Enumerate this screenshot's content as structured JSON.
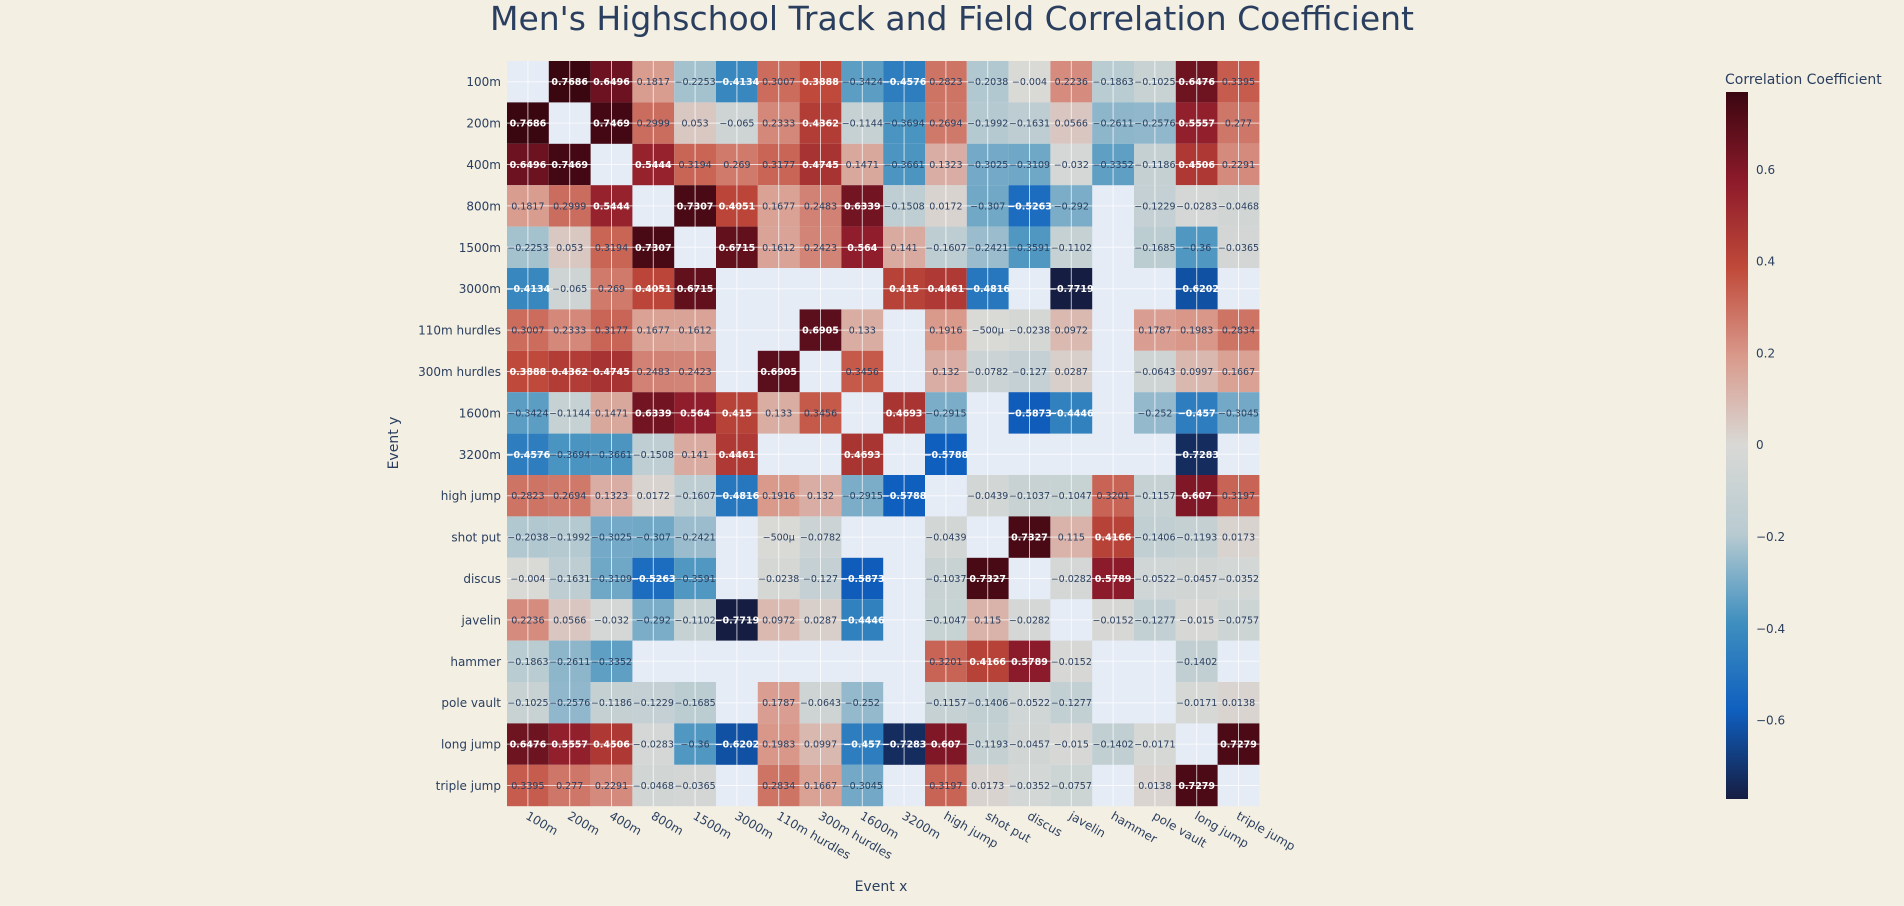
{
  "chart_data": {
    "type": "heatmap",
    "title": "Men's Highschool Track and Field Correlation Coefficient",
    "xlabel": "Event x",
    "ylabel": "Event y",
    "colorbar_title": "Correlation Coefficient",
    "colorbar_ticks": [
      "0.6",
      "0.4",
      "0.2",
      "0",
      "−0.2",
      "−0.4",
      "−0.6"
    ],
    "colorbar_tick_values": [
      0.6,
      0.4,
      0.2,
      0,
      -0.2,
      -0.4,
      -0.6
    ],
    "zmin": -0.7719,
    "zmax": 0.7686,
    "colorscale": [
      "#161d42",
      "#0f5fbf",
      "#3f8fbf",
      "#b8cbd1",
      "#d9d9d6",
      "#d99a8c",
      "#c04a3a",
      "#8c1a2a",
      "#3a0610"
    ],
    "x": [
      "100m",
      "200m",
      "400m",
      "800m",
      "1500m",
      "3000m",
      "110m hurdles",
      "300m hurdles",
      "1600m",
      "3200m",
      "high jump",
      "shot put",
      "discus",
      "javelin",
      "hammer",
      "pole vault",
      "long jump",
      "triple jump"
    ],
    "y": [
      "100m",
      "200m",
      "400m",
      "800m",
      "1500m",
      "3000m",
      "110m hurdles",
      "300m hurdles",
      "1600m",
      "3200m",
      "high jump",
      "shot put",
      "discus",
      "javelin",
      "hammer",
      "pole vault",
      "long jump",
      "triple jump"
    ],
    "z": [
      [
        null,
        0.7686,
        0.6496,
        0.1817,
        -0.2253,
        -0.4134,
        0.3007,
        0.3888,
        -0.3424,
        -0.4576,
        0.2823,
        -0.2038,
        -0.004,
        0.2236,
        -0.1863,
        -0.1025,
        0.6476,
        0.3395
      ],
      [
        0.7686,
        null,
        0.7469,
        0.2999,
        0.053,
        -0.065,
        0.2333,
        0.4362,
        -0.1144,
        -0.3694,
        0.2694,
        -0.1992,
        -0.1631,
        0.0566,
        -0.2611,
        -0.2576,
        0.5557,
        0.277
      ],
      [
        0.6496,
        0.7469,
        null,
        0.5444,
        0.3194,
        0.269,
        0.3177,
        0.4745,
        0.1471,
        -0.3661,
        0.1323,
        -0.3025,
        -0.3109,
        -0.032,
        -0.3352,
        -0.1186,
        0.4506,
        0.2291
      ],
      [
        0.1817,
        0.2999,
        0.5444,
        null,
        0.7307,
        0.4051,
        0.1677,
        0.2483,
        0.6339,
        -0.1508,
        0.0172,
        -0.307,
        -0.5263,
        -0.292,
        null,
        -0.1229,
        -0.0283,
        -0.0468
      ],
      [
        -0.2253,
        0.053,
        0.3194,
        0.7307,
        null,
        0.6715,
        0.1612,
        0.2423,
        0.564,
        0.141,
        -0.1607,
        -0.2421,
        -0.3591,
        -0.1102,
        null,
        -0.1685,
        -0.36,
        -0.0365
      ],
      [
        -0.4134,
        -0.065,
        0.269,
        0.4051,
        0.6715,
        null,
        null,
        null,
        null,
        0.415,
        0.4461,
        -0.4816,
        null,
        -0.7719,
        null,
        null,
        -0.6202,
        null
      ],
      [
        0.3007,
        0.2333,
        0.3177,
        0.1677,
        0.1612,
        null,
        null,
        0.6905,
        0.133,
        null,
        0.1916,
        -0.0005,
        -0.0238,
        0.0972,
        null,
        0.1787,
        0.1983,
        0.2834
      ],
      [
        0.3888,
        0.4362,
        0.4745,
        0.2483,
        0.2423,
        null,
        0.6905,
        null,
        0.3456,
        null,
        0.132,
        -0.0782,
        -0.127,
        0.0287,
        null,
        -0.0643,
        0.0997,
        0.1667
      ],
      [
        -0.3424,
        -0.1144,
        0.1471,
        0.6339,
        0.564,
        0.415,
        0.133,
        0.3456,
        null,
        0.4693,
        -0.2915,
        null,
        -0.5873,
        -0.4446,
        null,
        -0.252,
        -0.457,
        -0.3045
      ],
      [
        -0.4576,
        -0.3694,
        -0.3661,
        -0.1508,
        0.141,
        0.4461,
        null,
        null,
        0.4693,
        null,
        -0.5788,
        null,
        null,
        null,
        null,
        null,
        -0.7283,
        null
      ],
      [
        0.2823,
        0.2694,
        0.1323,
        0.0172,
        -0.1607,
        -0.4816,
        0.1916,
        0.132,
        -0.2915,
        -0.5788,
        null,
        -0.0439,
        -0.1037,
        -0.1047,
        0.3201,
        -0.1157,
        0.607,
        0.3197
      ],
      [
        -0.2038,
        -0.1992,
        -0.3025,
        -0.307,
        -0.2421,
        null,
        -0.0005,
        -0.0782,
        null,
        null,
        -0.0439,
        null,
        0.7327,
        0.115,
        0.4166,
        -0.1406,
        -0.1193,
        0.0173
      ],
      [
        -0.004,
        -0.1631,
        -0.3109,
        -0.5263,
        -0.3591,
        null,
        -0.0238,
        -0.127,
        -0.5873,
        null,
        -0.1037,
        0.7327,
        null,
        -0.0282,
        0.5789,
        -0.0522,
        -0.0457,
        -0.0352
      ],
      [
        0.2236,
        0.0566,
        -0.032,
        -0.292,
        -0.1102,
        -0.7719,
        0.0972,
        0.0287,
        -0.4446,
        null,
        -0.1047,
        0.115,
        -0.0282,
        null,
        -0.0152,
        -0.1277,
        -0.015,
        -0.0757
      ],
      [
        -0.1863,
        -0.2611,
        -0.3352,
        null,
        null,
        null,
        null,
        null,
        null,
        null,
        0.3201,
        0.4166,
        0.5789,
        -0.0152,
        null,
        null,
        -0.1402,
        null
      ],
      [
        -0.1025,
        -0.2576,
        -0.1186,
        -0.1229,
        -0.1685,
        null,
        0.1787,
        -0.0643,
        -0.252,
        null,
        -0.1157,
        -0.1406,
        -0.0522,
        -0.1277,
        null,
        null,
        -0.0171,
        0.0138
      ],
      [
        0.6476,
        0.5557,
        0.4506,
        -0.0283,
        -0.36,
        -0.6202,
        0.1983,
        0.0997,
        -0.457,
        -0.7283,
        0.607,
        -0.1193,
        -0.0457,
        -0.015,
        -0.1402,
        -0.0171,
        null,
        0.7279
      ],
      [
        0.3395,
        0.277,
        0.2291,
        -0.0468,
        -0.0365,
        null,
        0.2834,
        0.1667,
        -0.3045,
        null,
        0.3197,
        0.0173,
        -0.0352,
        -0.0757,
        null,
        0.0138,
        0.7279,
        null
      ]
    ],
    "text": [
      [
        "",
        "0.7686",
        "0.6496",
        "0.1817",
        "−0.2253",
        "−0.4134",
        "0.3007",
        "0.3888",
        "−0.3424",
        "−0.4576",
        "0.2823",
        "−0.2038",
        "−0.004",
        "0.2236",
        "−0.1863",
        "−0.1025",
        "0.6476",
        "0.3395"
      ],
      [
        "0.7686",
        "",
        "0.7469",
        "0.2999",
        "0.053",
        "−0.065",
        "0.2333",
        "0.4362",
        "−0.1144",
        "−0.3694",
        "0.2694",
        "−0.1992",
        "−0.1631",
        "0.0566",
        "−0.2611",
        "−0.2576",
        "0.5557",
        "0.277"
      ],
      [
        "0.6496",
        "0.7469",
        "",
        "0.5444",
        "0.3194",
        "0.269",
        "0.3177",
        "0.4745",
        "0.1471",
        "−0.3661",
        "0.1323",
        "−0.3025",
        "−0.3109",
        "−0.032",
        "−0.3352",
        "−0.1186",
        "0.4506",
        "0.2291"
      ],
      [
        "0.1817",
        "0.2999",
        "0.5444",
        "",
        "0.7307",
        "0.4051",
        "0.1677",
        "0.2483",
        "0.6339",
        "−0.1508",
        "0.0172",
        "−0.307",
        "−0.5263",
        "−0.292",
        "",
        "−0.1229",
        "−0.0283",
        "−0.0468"
      ],
      [
        "−0.2253",
        "0.053",
        "0.3194",
        "0.7307",
        "",
        "0.6715",
        "0.1612",
        "0.2423",
        "0.564",
        "0.141",
        "−0.1607",
        "−0.2421",
        "−0.3591",
        "−0.1102",
        "",
        "−0.1685",
        "−0.36",
        "−0.0365"
      ],
      [
        "−0.4134",
        "−0.065",
        "0.269",
        "0.4051",
        "0.6715",
        "",
        "",
        "",
        "",
        "0.415",
        "0.4461",
        "−0.4816",
        "",
        "−0.7719",
        "",
        "",
        "−0.6202",
        ""
      ],
      [
        "0.3007",
        "0.2333",
        "0.3177",
        "0.1677",
        "0.1612",
        "",
        "",
        "0.6905",
        "0.133",
        "",
        "0.1916",
        "−500μ",
        "−0.0238",
        "0.0972",
        "",
        "0.1787",
        "0.1983",
        "0.2834"
      ],
      [
        "0.3888",
        "0.4362",
        "0.4745",
        "0.2483",
        "0.2423",
        "",
        "0.6905",
        "",
        "0.3456",
        "",
        "0.132",
        "−0.0782",
        "−0.127",
        "0.0287",
        "",
        "−0.0643",
        "0.0997",
        "0.1667"
      ],
      [
        "−0.3424",
        "−0.1144",
        "0.1471",
        "0.6339",
        "0.564",
        "0.415",
        "0.133",
        "0.3456",
        "",
        "0.4693",
        "−0.2915",
        "",
        "−0.5873",
        "−0.4446",
        "",
        "−0.252",
        "−0.457",
        "−0.3045"
      ],
      [
        "−0.4576",
        "−0.3694",
        "−0.3661",
        "−0.1508",
        "0.141",
        "0.4461",
        "",
        "",
        "0.4693",
        "",
        "−0.5788",
        "",
        "",
        "",
        "",
        "",
        "−0.7283",
        ""
      ],
      [
        "0.2823",
        "0.2694",
        "0.1323",
        "0.0172",
        "−0.1607",
        "−0.4816",
        "0.1916",
        "0.132",
        "−0.2915",
        "−0.5788",
        "",
        "−0.0439",
        "−0.1037",
        "−0.1047",
        "0.3201",
        "−0.1157",
        "0.607",
        "0.3197"
      ],
      [
        "−0.2038",
        "−0.1992",
        "−0.3025",
        "−0.307",
        "−0.2421",
        "",
        "−500μ",
        "−0.0782",
        "",
        "",
        "−0.0439",
        "",
        "0.7327",
        "0.115",
        "0.4166",
        "−0.1406",
        "−0.1193",
        "0.0173"
      ],
      [
        "−0.004",
        "−0.1631",
        "−0.3109",
        "−0.5263",
        "−0.3591",
        "",
        "−0.0238",
        "−0.127",
        "−0.5873",
        "",
        "−0.1037",
        "0.7327",
        "",
        "−0.0282",
        "0.5789",
        "−0.0522",
        "−0.0457",
        "−0.0352"
      ],
      [
        "0.2236",
        "0.0566",
        "−0.032",
        "−0.292",
        "−0.1102",
        "−0.7719",
        "0.0972",
        "0.0287",
        "−0.4446",
        "",
        "−0.1047",
        "0.115",
        "−0.0282",
        "",
        "−0.0152",
        "−0.1277",
        "−0.015",
        "−0.0757"
      ],
      [
        "−0.1863",
        "−0.2611",
        "−0.3352",
        "",
        "",
        "",
        "",
        "",
        "",
        "",
        "0.3201",
        "0.4166",
        "0.5789",
        "−0.0152",
        "",
        "",
        "−0.1402",
        ""
      ],
      [
        "−0.1025",
        "−0.2576",
        "−0.1186",
        "−0.1229",
        "−0.1685",
        "",
        "0.1787",
        "−0.0643",
        "−0.252",
        "",
        "−0.1157",
        "−0.1406",
        "−0.0522",
        "−0.1277",
        "",
        "",
        "−0.0171",
        "0.0138"
      ],
      [
        "0.6476",
        "0.5557",
        "0.4506",
        "−0.0283",
        "−0.36",
        "−0.6202",
        "0.1983",
        "0.0997",
        "−0.457",
        "−0.7283",
        "0.607",
        "−0.1193",
        "−0.0457",
        "−0.015",
        "−0.1402",
        "−0.0171",
        "",
        "0.7279"
      ],
      [
        "0.3395",
        "0.277",
        "0.2291",
        "−0.0468",
        "−0.0365",
        "",
        "0.2834",
        "0.1667",
        "−0.3045",
        "",
        "0.3197",
        "0.0173",
        "−0.0352",
        "−0.0757",
        "",
        "0.0138",
        "0.7279",
        ""
      ]
    ],
    "plot_background": "#e5ecf6",
    "page_background": "#f4efe3",
    "title_color": "#2a3f5f",
    "grid": true,
    "legend": "colorbar-right"
  }
}
